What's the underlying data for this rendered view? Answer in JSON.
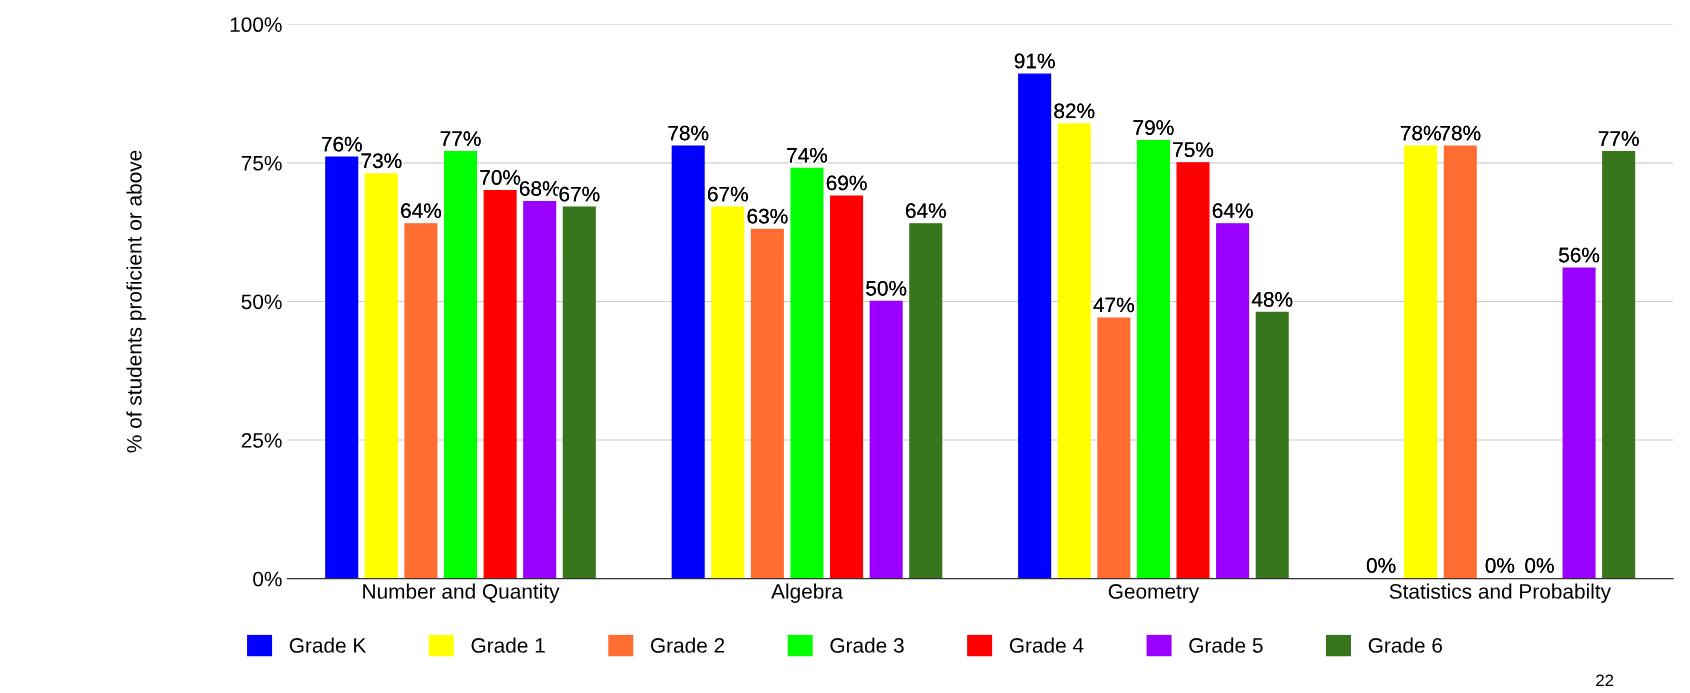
{
  "chart_data": {
    "type": "bar",
    "ylabel": "% of students proficient or above",
    "categories": [
      "Number and Quantity",
      "Algebra",
      "Geometry",
      "Statistics and Probabilty"
    ],
    "series": [
      {
        "name": "Grade K",
        "color": "#0000ff",
        "values": [
          76,
          78,
          91,
          0
        ],
        "value_labels": [
          "76%",
          "78%",
          "91%",
          "0%"
        ]
      },
      {
        "name": "Grade 1",
        "color": "#ffff00",
        "values": [
          73,
          67,
          82,
          78
        ],
        "value_labels": [
          "73%",
          "67%",
          "82%",
          "78%"
        ]
      },
      {
        "name": "Grade 2",
        "color": "#ff6d31",
        "values": [
          64,
          63,
          47,
          78
        ],
        "value_labels": [
          "64%",
          "63%",
          "47%",
          "78%"
        ]
      },
      {
        "name": "Grade 3",
        "color": "#00ff00",
        "values": [
          77,
          74,
          79,
          0
        ],
        "value_labels": [
          "77%",
          "74%",
          "79%",
          "0%"
        ]
      },
      {
        "name": "Grade 4",
        "color": "#ff0000",
        "values": [
          70,
          69,
          75,
          0
        ],
        "value_labels": [
          "70%",
          "69%",
          "75%",
          "0%"
        ]
      },
      {
        "name": "Grade 5",
        "color": "#9900ff",
        "values": [
          68,
          50,
          64,
          56
        ],
        "value_labels": [
          "68%",
          "50%",
          "64%",
          "56%"
        ]
      },
      {
        "name": "Grade 6",
        "color": "#38761d",
        "values": [
          67,
          64,
          48,
          77
        ],
        "value_labels": [
          "67%",
          "64%",
          "48%",
          "77%"
        ]
      }
    ],
    "ylim": [
      0,
      100
    ],
    "yticks": [
      {
        "value": 0,
        "label": "0%"
      },
      {
        "value": 25,
        "label": "25%"
      },
      {
        "value": 50,
        "label": "50%"
      },
      {
        "value": 75,
        "label": "75%"
      },
      {
        "value": 100,
        "label": "100%"
      }
    ],
    "grid": "y",
    "legend": "bottom",
    "annotations": [
      "22"
    ]
  }
}
